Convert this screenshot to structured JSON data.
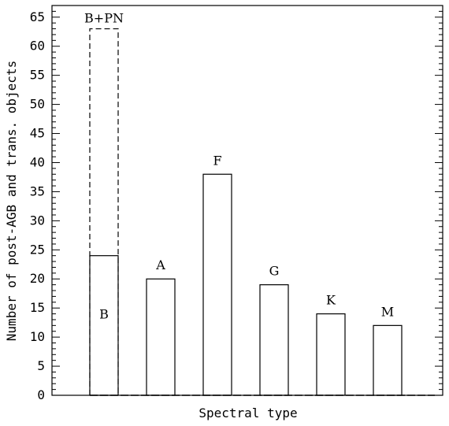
{
  "chart_data": {
    "type": "bar",
    "ylabel": "Number of post-AGB and trans. objects",
    "xlabel": "Spectral type",
    "ylim": [
      0,
      67
    ],
    "y_ticks": [
      0,
      5,
      10,
      15,
      20,
      25,
      30,
      35,
      40,
      45,
      50,
      55,
      60,
      65
    ],
    "grid": false,
    "categories": [
      "B",
      "A",
      "F",
      "G",
      "K",
      "M"
    ],
    "values": [
      24,
      20,
      38,
      19,
      14,
      12
    ],
    "labels": [
      {
        "text": "B",
        "position": "inside"
      },
      {
        "text": "A",
        "position": "above"
      },
      {
        "text": "F",
        "position": "above"
      },
      {
        "text": "G",
        "position": "above"
      },
      {
        "text": "K",
        "position": "above"
      },
      {
        "text": "M",
        "position": "above"
      }
    ],
    "dashed_series": {
      "category": "B",
      "value": 63,
      "label": "B+PN"
    }
  }
}
